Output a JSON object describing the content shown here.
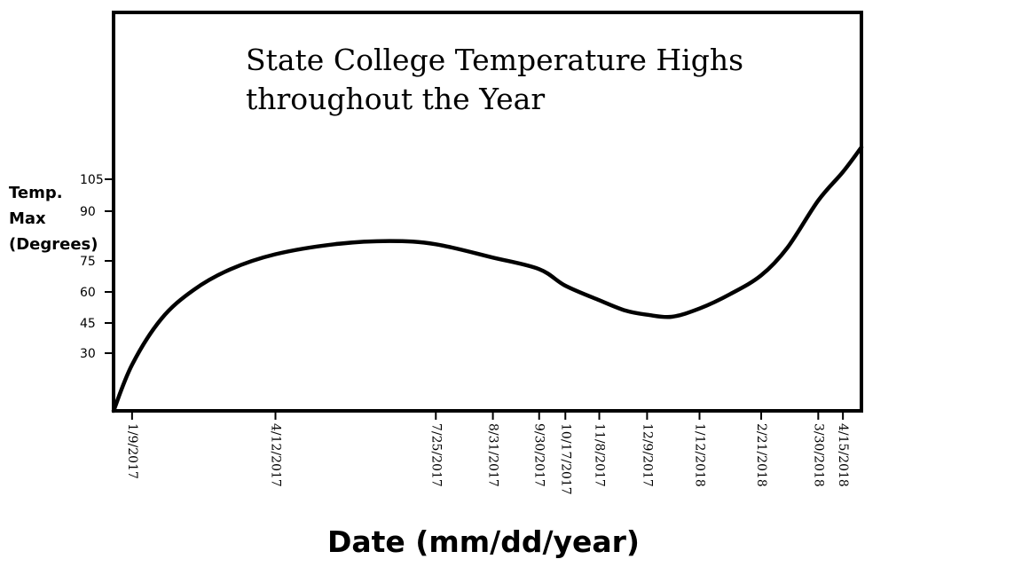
{
  "chart_data": {
    "type": "line",
    "title_lines": [
      "State College Temperature Highs",
      "throughout the Year"
    ],
    "ylabel_lines": [
      "Temp.",
      "Max",
      "(Degrees)"
    ],
    "xlabel": "Date (mm/dd/year)",
    "yticks": [
      105,
      90,
      75,
      60,
      45,
      30
    ],
    "xticks": [
      {
        "label": "1/9/2017",
        "date": "2017-01-09"
      },
      {
        "label": "4/12/2017",
        "date": "2017-04-12"
      },
      {
        "label": "7/25/2017",
        "date": "2017-07-25"
      },
      {
        "label": "8/31/2017",
        "date": "2017-08-31"
      },
      {
        "label": "9/30/2017",
        "date": "2017-09-30"
      },
      {
        "label": "10/17/2017",
        "date": "2017-10-17"
      },
      {
        "label": "11/8/2017",
        "date": "2017-11-08"
      },
      {
        "label": "12/9/2017",
        "date": "2017-12-09"
      },
      {
        "label": "1/12/2018",
        "date": "2018-01-12"
      },
      {
        "label": "2/21/2018",
        "date": "2018-02-21"
      },
      {
        "label": "3/30/2018",
        "date": "2018-03-30"
      },
      {
        "label": "4/15/2018",
        "date": "2018-04-15"
      }
    ],
    "series": [
      {
        "color": "#000000",
        "points": [
          {
            "x": "2016-12-28",
            "y": 0
          },
          {
            "x": "2017-01-09",
            "y": 24
          },
          {
            "x": "2017-01-28",
            "y": 47
          },
          {
            "x": "2017-02-18",
            "y": 61
          },
          {
            "x": "2017-03-14",
            "y": 71
          },
          {
            "x": "2017-04-12",
            "y": 77
          },
          {
            "x": "2017-05-20",
            "y": 80
          },
          {
            "x": "2017-06-25",
            "y": 81
          },
          {
            "x": "2017-07-25",
            "y": 80
          },
          {
            "x": "2017-08-31",
            "y": 76
          },
          {
            "x": "2017-09-30",
            "y": 71
          },
          {
            "x": "2017-10-17",
            "y": 63
          },
          {
            "x": "2017-11-08",
            "y": 56
          },
          {
            "x": "2017-11-25",
            "y": 51
          },
          {
            "x": "2017-12-09",
            "y": 49
          },
          {
            "x": "2017-12-25",
            "y": 48
          },
          {
            "x": "2018-01-12",
            "y": 52
          },
          {
            "x": "2018-02-01",
            "y": 59
          },
          {
            "x": "2018-02-21",
            "y": 68
          },
          {
            "x": "2018-03-10",
            "y": 79
          },
          {
            "x": "2018-03-30",
            "y": 95
          },
          {
            "x": "2018-04-15",
            "y": 110
          },
          {
            "x": "2018-04-27",
            "y": 127
          }
        ]
      }
    ]
  }
}
